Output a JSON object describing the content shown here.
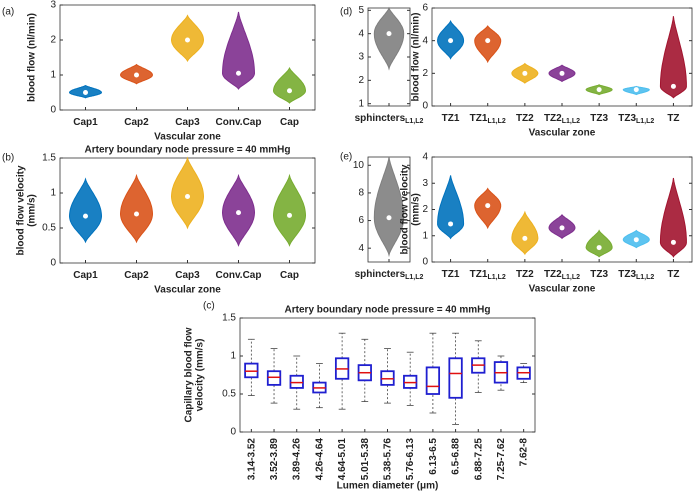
{
  "chart_data": [
    {
      "type": "violin",
      "panel_label": "(a)",
      "ylabel": [
        "blood flow (nl/min)"
      ],
      "xlabel": "Vascular zone",
      "categories": [
        "Cap1",
        "Cap2",
        "Cap3",
        "Conv.Cap",
        "Cap"
      ],
      "colors": [
        "#0072bd",
        "#d95319",
        "#edb120",
        "#7e2f8e",
        "#77ac30"
      ],
      "min": [
        0.35,
        0.75,
        1.4,
        0.6,
        0.2
      ],
      "max": [
        0.7,
        1.3,
        2.7,
        2.8,
        1.2
      ],
      "median": [
        0.5,
        1.0,
        2.0,
        1.05,
        0.55
      ],
      "ylim": [
        0,
        3
      ],
      "yticks": [
        0,
        1,
        2,
        3
      ]
    },
    {
      "type": "violin",
      "panel_label": "(b)",
      "title": "Artery boundary node pressure = 40 mmHg",
      "ylabel": [
        "blood flow velocity",
        "(mm/s)"
      ],
      "xlabel": "Vascular zone",
      "categories": [
        "Cap1",
        "Cap2",
        "Cap3",
        "Conv.Cap",
        "Cap"
      ],
      "colors": [
        "#0072bd",
        "#d95319",
        "#edb120",
        "#7e2f8e",
        "#77ac30"
      ],
      "min": [
        0.3,
        0.3,
        0.5,
        0.25,
        0.25
      ],
      "max": [
        1.2,
        1.25,
        1.5,
        1.25,
        1.25
      ],
      "median": [
        0.67,
        0.7,
        0.95,
        0.72,
        0.68
      ],
      "ylim": [
        0,
        1.5
      ],
      "yticks": [
        0,
        0.5,
        1,
        1.5
      ]
    },
    {
      "type": "violin",
      "panel_label": "(d)",
      "categories": [
        "sphincters"
      ],
      "category_subscripts": [
        "L1,L2"
      ],
      "colors": [
        "#7f7f7f"
      ],
      "min": [
        2.5
      ],
      "max": [
        5.1
      ],
      "median": [
        4
      ],
      "ylim": [
        0.9,
        5.1
      ],
      "yticks": [
        1,
        2,
        3,
        4,
        5
      ]
    },
    {
      "type": "violin",
      "ylabel": [
        "blood flow (nl/min)"
      ],
      "xlabel": "Vascular zone",
      "categories": [
        "TZ1",
        "TZ1",
        "TZ2",
        "TZ2",
        "TZ3",
        "TZ3",
        "TZ"
      ],
      "category_subscripts": [
        null,
        "L1,L2",
        null,
        "L1,L2",
        null,
        "L1,L2",
        null
      ],
      "colors": [
        "#0072bd",
        "#d95319",
        "#edb120",
        "#7e2f8e",
        "#77ac30",
        "#4dbeee",
        "#a2142f"
      ],
      "min": [
        2.9,
        2.7,
        1.4,
        1.5,
        0.7,
        0.7,
        0.5
      ],
      "max": [
        5.2,
        4.9,
        2.6,
        2.5,
        1.3,
        1.2,
        5.5
      ],
      "median": [
        4,
        4,
        2,
        2,
        1,
        1,
        1.2
      ],
      "ylim": [
        0,
        6
      ],
      "yticks": [
        0,
        2,
        4,
        6
      ]
    },
    {
      "type": "violin",
      "panel_label": "(e)",
      "categories": [
        "sphincters"
      ],
      "category_subscripts": [
        "L1,L2"
      ],
      "colors": [
        "#7f7f7f"
      ],
      "min": [
        3.5
      ],
      "max": [
        10.6
      ],
      "median": [
        6.2
      ],
      "ylim": [
        3,
        10.6
      ],
      "yticks": [
        4,
        6,
        8,
        10
      ]
    },
    {
      "type": "violin",
      "ylabel": [
        "blood flow velocity",
        "(mm/s)"
      ],
      "xlabel": "Vascular zone",
      "categories": [
        "TZ1",
        "TZ1",
        "TZ2",
        "TZ2",
        "TZ3",
        "TZ3",
        "TZ"
      ],
      "category_subscripts": [
        null,
        "L1,L2",
        null,
        "L1,L2",
        null,
        "L1,L2",
        null
      ],
      "colors": [
        "#0072bd",
        "#d95319",
        "#edb120",
        "#7e2f8e",
        "#77ac30",
        "#4dbeee",
        "#a2142f"
      ],
      "min": [
        0.9,
        1.3,
        0.3,
        0.9,
        0.2,
        0.55,
        0.2
      ],
      "max": [
        3.3,
        2.8,
        1.9,
        1.8,
        1.2,
        1.2,
        3.2
      ],
      "median": [
        1.45,
        2.15,
        0.9,
        1.3,
        0.55,
        0.85,
        0.75
      ],
      "ylim": [
        0,
        4
      ],
      "yticks": [
        0,
        1,
        2,
        3,
        4
      ]
    },
    {
      "type": "box",
      "panel_label": "(c)",
      "title": "Artery boundary node pressure = 40 mmHg",
      "ylabel": [
        "Capillary blood flow",
        "velocity (mm/s)"
      ],
      "xlabel": "Lumen diameter (μm)",
      "categories": [
        "3.14-3.52",
        "3.52-3.89",
        "3.89-4.26",
        "4.26-4.64",
        "4.64-5.01",
        "5.01-5.38",
        "5.38-5.76",
        "5.76-6.13",
        "6.13-6.5",
        "6.5-6.88",
        "6.88-7.25",
        "7.25-7.62",
        "7.62-8"
      ],
      "whisker_low": [
        0.48,
        0.38,
        0.3,
        0.32,
        0.3,
        0.4,
        0.38,
        0.35,
        0.25,
        0.1,
        0.52,
        0.55,
        0.65
      ],
      "q1": [
        0.72,
        0.62,
        0.58,
        0.52,
        0.7,
        0.68,
        0.62,
        0.58,
        0.5,
        0.45,
        0.78,
        0.65,
        0.7
      ],
      "median": [
        0.8,
        0.72,
        0.65,
        0.58,
        0.83,
        0.78,
        0.7,
        0.65,
        0.6,
        0.77,
        0.88,
        0.78,
        0.78
      ],
      "q3": [
        0.9,
        0.8,
        0.74,
        0.65,
        0.97,
        0.88,
        0.8,
        0.74,
        0.85,
        0.97,
        0.97,
        0.92,
        0.85
      ],
      "whisker_high": [
        1.22,
        1.1,
        1.0,
        0.9,
        1.3,
        1.22,
        1.1,
        1.05,
        1.3,
        1.3,
        1.2,
        1.0,
        0.9
      ],
      "box_color": "#1f1fd0",
      "median_color": "#e01010",
      "whisker_color": "#444444",
      "ylim": [
        0,
        1.5
      ],
      "yticks": [
        0,
        0.5,
        1,
        1.5
      ]
    }
  ]
}
